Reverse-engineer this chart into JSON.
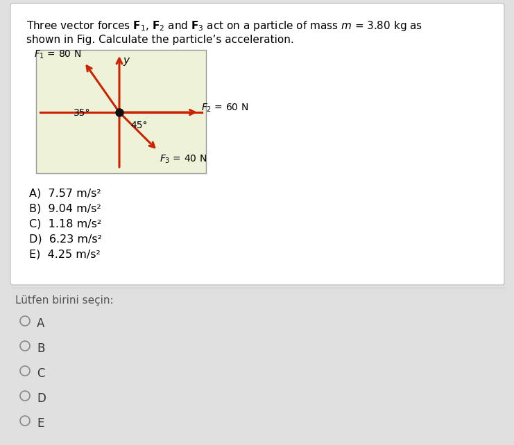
{
  "title_line1": "Three vector forces $\\mathbf{F}_1$, $\\mathbf{F}_2$ and $\\mathbf{F}_3$ act on a particle of mass $m$ = 3.80 kg as",
  "title_line2": "shown in Fig. Calculate the particle’s acceleration.",
  "F1_label": "$F_1$ = 80 N",
  "F2_label": "$F_2$ = 60 N",
  "F3_label": "$F_3$ = 40 N",
  "angle1_label": "35°",
  "angle2_label": "45°",
  "y_label": "y",
  "choice_texts": [
    "A)  7.57 m/s²",
    "B)  9.04 m/s²",
    "C)  1.18 m/s²",
    "D)  6.23 m/s²",
    "E)  4.25 m/s²"
  ],
  "select_label": "Lütfen birini seçin:",
  "radio_labels": [
    "A",
    "B",
    "C",
    "D",
    "E"
  ],
  "diag_bg_color": "#eef2d8",
  "arrow_color": "#cc2200",
  "dot_color": "#111111",
  "panel_bg": "#ffffff",
  "outer_bg": "#e0e0e0",
  "fig_width": 7.41,
  "fig_height": 6.42,
  "dpi": 100
}
